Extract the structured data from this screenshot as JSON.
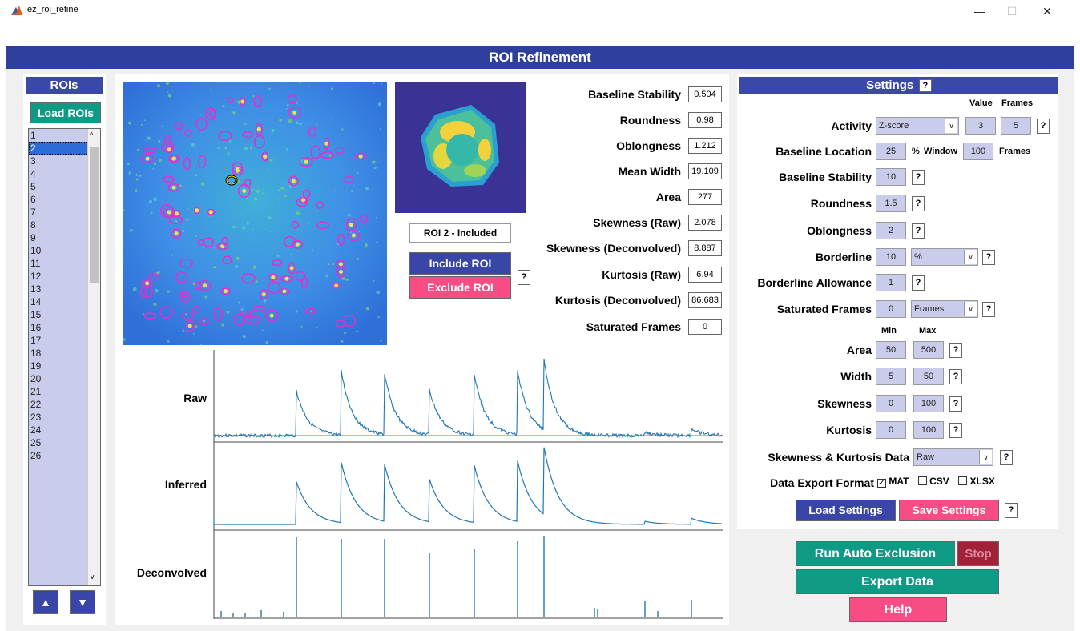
{
  "window": {
    "title": "ez_roi_refine",
    "minimize_glyph": "—",
    "maximize_glyph": "☐",
    "close_glyph": "✕"
  },
  "header": {
    "title": "ROI Refinement"
  },
  "roi_panel": {
    "title": "ROIs",
    "load_button": "Load ROIs",
    "items": [
      "1",
      "2",
      "3",
      "4",
      "5",
      "6",
      "7",
      "8",
      "9",
      "10",
      "11",
      "12",
      "13",
      "14",
      "15",
      "16",
      "17",
      "18",
      "19",
      "20",
      "21",
      "22",
      "23",
      "24",
      "25",
      "26"
    ],
    "selected": "2",
    "up_glyph": "▲",
    "down_glyph": "▼"
  },
  "roi_status": "ROI 2 - Included",
  "roi_buttons": {
    "include": "Include ROI",
    "exclude": "Exclude ROI",
    "help": "?"
  },
  "metrics": [
    {
      "label": "Baseline Stability",
      "value": "0.504"
    },
    {
      "label": "Roundness",
      "value": "0.98"
    },
    {
      "label": "Oblongness",
      "value": "1.212"
    },
    {
      "label": "Mean Width",
      "value": "19.109"
    },
    {
      "label": "Area",
      "value": "277"
    },
    {
      "label": "Skewness (Raw)",
      "value": "2.078"
    },
    {
      "label": "Skewness (Deconvolved)",
      "value": "8.887"
    },
    {
      "label": "Kurtosis (Raw)",
      "value": "6.94"
    },
    {
      "label": "Kurtosis (Deconvolved)",
      "value": "86.683"
    },
    {
      "label": "Saturated Frames",
      "value": "0"
    }
  ],
  "traces": {
    "raw_label": "Raw",
    "inferred_label": "Inferred",
    "deconvolved_label": "Deconvolved",
    "colors": {
      "trace": "#1f77b4",
      "baseline": "#e8735a"
    }
  },
  "settings": {
    "title": "Settings",
    "title_help": "?",
    "activity": {
      "label": "Activity",
      "mode": "Z-score",
      "value_hdr": "Value",
      "frames_hdr": "Frames",
      "value": "3",
      "frames": "5"
    },
    "baseline_location": {
      "label": "Baseline Location",
      "value": "25",
      "unit": "%",
      "window_label": "Window",
      "window": "100",
      "frames_label": "Frames"
    },
    "baseline_stability": {
      "label": "Baseline Stability",
      "value": "10"
    },
    "roundness": {
      "label": "Roundness",
      "value": "1.5"
    },
    "oblongness": {
      "label": "Oblongness",
      "value": "2"
    },
    "borderline": {
      "label": "Borderline",
      "value": "10",
      "unit": "%"
    },
    "borderline_allowance": {
      "label": "Borderline Allowance",
      "value": "1"
    },
    "saturated_frames": {
      "label": "Saturated Frames",
      "value": "0",
      "unit": "Frames"
    },
    "range_hdr": {
      "min": "Min",
      "max": "Max"
    },
    "area": {
      "label": "Area",
      "min": "50",
      "max": "500"
    },
    "width": {
      "label": "Width",
      "min": "5",
      "max": "50"
    },
    "skewness": {
      "label": "Skewness",
      "min": "0",
      "max": "100"
    },
    "kurtosis": {
      "label": "Kurtosis",
      "min": "0",
      "max": "100"
    },
    "sk_data": {
      "label": "Skewness & Kurtosis Data",
      "value": "Raw"
    },
    "export_format": {
      "label": "Data Export Format",
      "mat": "MAT",
      "csv": "CSV",
      "xlsx": "XLSX",
      "mat_checked": true,
      "csv_checked": false,
      "xlsx_checked": false
    },
    "load_button": "Load Settings",
    "save_button": "Save Settings"
  },
  "actions": {
    "run": "Run Auto Exclusion",
    "stop": "Stop",
    "export": "Export Data",
    "help": "Help"
  }
}
